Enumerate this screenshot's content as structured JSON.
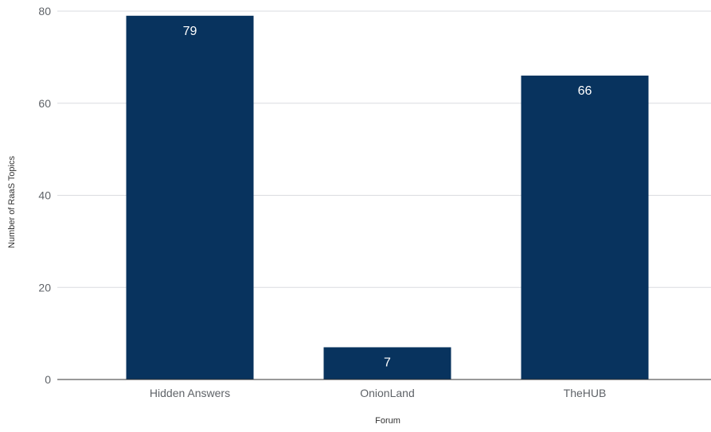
{
  "chart_data": {
    "type": "bar",
    "title": "",
    "categories": [
      "Hidden Answers",
      "OnionLand",
      "TheHUB"
    ],
    "values": [
      79,
      7,
      66
    ],
    "data_labels": [
      "79",
      "7",
      "66"
    ],
    "xlabel": "Forum",
    "ylabel": "Number of RaaS Topics",
    "ylim": [
      0,
      80
    ],
    "yticks": [
      0,
      20,
      40,
      60,
      80
    ],
    "ytick_labels": [
      "0",
      "20",
      "40",
      "60",
      "80"
    ],
    "grid": true,
    "legend": "none",
    "bar_color": "#08335e"
  }
}
